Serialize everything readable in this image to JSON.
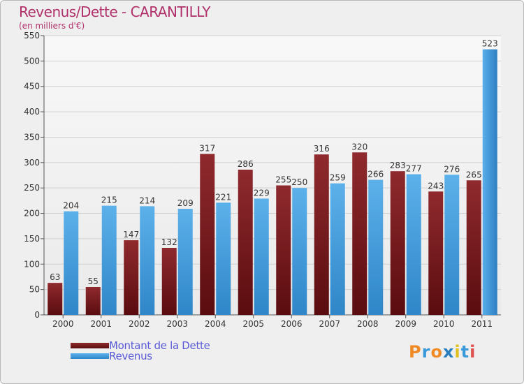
{
  "chart_data": {
    "type": "bar",
    "title": "Revenus/Dette - CARANTILLY",
    "subtitle": "(en milliers d'€)",
    "categories": [
      "2000",
      "2001",
      "2002",
      "2003",
      "2004",
      "2005",
      "2006",
      "2007",
      "2008",
      "2009",
      "2010",
      "2011"
    ],
    "series": [
      {
        "name": "Montant de la Dette",
        "color": "#7a1518",
        "values": [
          63,
          55,
          147,
          132,
          317,
          286,
          255,
          316,
          320,
          283,
          243,
          265
        ]
      },
      {
        "name": "Revenus",
        "color": "#4aa3e0",
        "values": [
          204,
          215,
          214,
          209,
          221,
          229,
          250,
          259,
          266,
          277,
          276,
          523
        ]
      }
    ],
    "ylim": [
      0,
      550
    ],
    "yticks": [
      0,
      50,
      100,
      150,
      200,
      250,
      300,
      350,
      400,
      450,
      500,
      550
    ],
    "grid": true,
    "legend": "bottom-left"
  },
  "logo": {
    "text": "Proxiti",
    "colors": [
      "#f08a24",
      "#3a9ad9",
      "#f08a24",
      "#2a7fc0",
      "#e0c020",
      "#3a9ad9",
      "#e05050"
    ]
  }
}
